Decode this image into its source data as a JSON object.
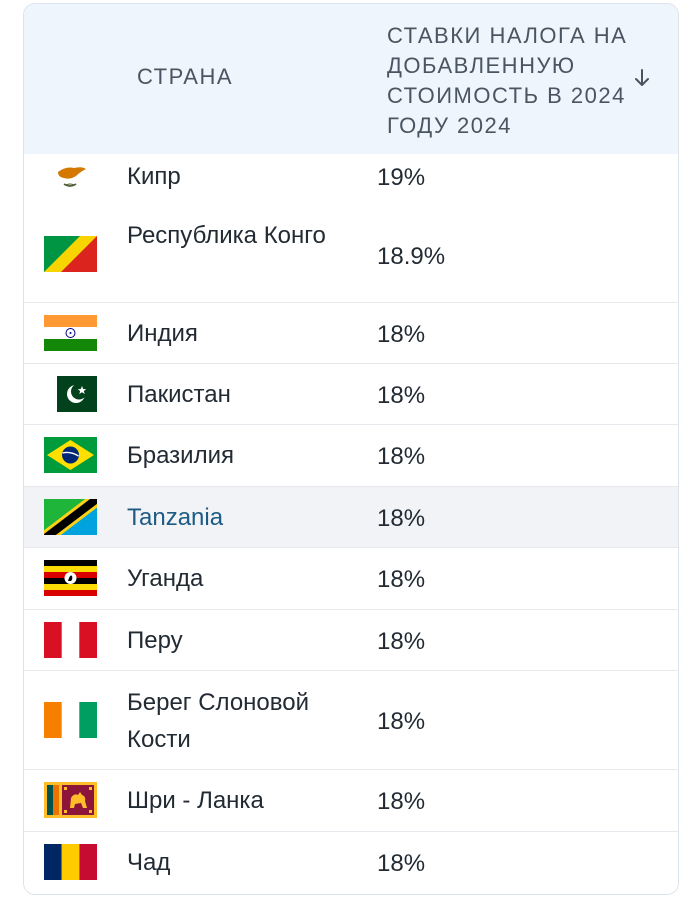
{
  "header": {
    "country_label": "СТРАНА",
    "vat_label": "СТАВКИ НАЛОГА НА ДОБАВЛЕННУЮ СТОИМОСТЬ В 2024 ГОДУ 2024",
    "sort_icon": "arrow-down-icon"
  },
  "rows": [
    {
      "country": "Кипр",
      "rate": "19%",
      "flag": "cyprus-flag-icon"
    },
    {
      "country": "Республика Конго",
      "rate": "18.9%",
      "flag": "congo-flag-icon"
    },
    {
      "country": "Индия",
      "rate": "18%",
      "flag": "india-flag-icon"
    },
    {
      "country": "Пакистан",
      "rate": "18%",
      "flag": "pakistan-flag-icon"
    },
    {
      "country": "Бразилия",
      "rate": "18%",
      "flag": "brazil-flag-icon"
    },
    {
      "country": "Tanzania",
      "rate": "18%",
      "flag": "tanzania-flag-icon",
      "link": true,
      "highlighted": true
    },
    {
      "country": "Уганда",
      "rate": "18%",
      "flag": "uganda-flag-icon"
    },
    {
      "country": "Перу",
      "rate": "18%",
      "flag": "peru-flag-icon"
    },
    {
      "country": "Берег Слоновой Кости",
      "rate": "18%",
      "flag": "ivory-coast-flag-icon"
    },
    {
      "country": "Шри - Ланка",
      "rate": "18%",
      "flag": "sri-lanka-flag-icon"
    },
    {
      "country": "Чад",
      "rate": "18%",
      "flag": "chad-flag-icon"
    }
  ],
  "colors": {
    "header_bg": "#eef5fc",
    "link": "#1d5a84",
    "highlight_row": "#f1f3f6"
  }
}
